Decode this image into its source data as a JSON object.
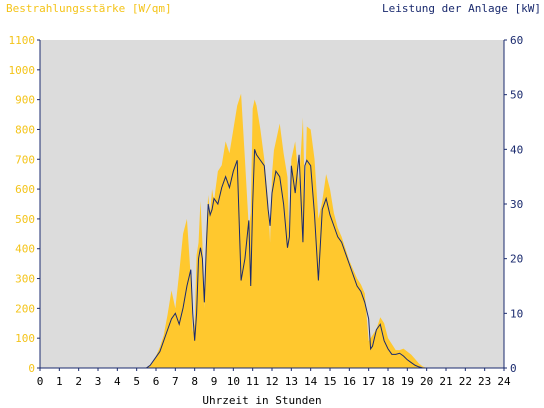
{
  "chart_data": {
    "type": "area",
    "title_left": "Bestrahlungsstärke [W/qm]",
    "title_right": "Leistung der Anlage [kW]",
    "xlabel": "Uhrzeit in Stunden",
    "x_range": [
      0,
      24
    ],
    "x_ticks": [
      "0",
      "1",
      "2",
      "3",
      "4",
      "5",
      "6",
      "7",
      "8",
      "9",
      "10",
      "11",
      "12",
      "13",
      "14",
      "15",
      "16",
      "17",
      "18",
      "19",
      "20",
      "21",
      "22",
      "23",
      "24"
    ],
    "y_left_range": [
      0,
      1100
    ],
    "y_left_ticks": [
      "0",
      "100",
      "200",
      "300",
      "400",
      "500",
      "600",
      "700",
      "800",
      "900",
      "1000",
      "1100"
    ],
    "y_right_range": [
      0,
      60
    ],
    "y_right_ticks": [
      "0",
      "10",
      "20",
      "30",
      "40",
      "50",
      "60"
    ],
    "grid": false,
    "colors": {
      "plot_background": "#dcdcdc",
      "irradiance_fill": "#ffc82e",
      "power_line": "#1a2a6e",
      "left_axis_text": "#f4c41a",
      "right_axis_text": "#1a2a6e"
    },
    "series": [
      {
        "axis": "left",
        "style": "filled-area",
        "x": [
          0,
          5.4,
          5.6,
          5.8,
          6.0,
          6.2,
          6.4,
          6.6,
          6.8,
          7.0,
          7.2,
          7.4,
          7.6,
          7.8,
          7.9,
          8.0,
          8.1,
          8.2,
          8.3,
          8.4,
          8.5,
          8.6,
          8.7,
          8.8,
          8.9,
          9.0,
          9.2,
          9.4,
          9.6,
          9.8,
          10.0,
          10.2,
          10.4,
          10.6,
          10.8,
          10.9,
          11.0,
          11.1,
          11.2,
          11.4,
          11.6,
          11.8,
          11.9,
          12.0,
          12.1,
          12.2,
          12.4,
          12.6,
          12.8,
          12.9,
          13.0,
          13.2,
          13.4,
          13.6,
          13.7,
          13.8,
          14.0,
          14.2,
          14.4,
          14.6,
          14.8,
          15.0,
          15.2,
          15.4,
          15.6,
          15.8,
          16.0,
          16.2,
          16.4,
          16.6,
          16.8,
          17.0,
          17.2,
          17.4,
          17.6,
          17.8,
          18.0,
          18.2,
          18.4,
          18.6,
          18.8,
          19.0,
          19.2,
          19.4,
          19.6,
          19.8,
          20.0,
          24
        ],
        "y": [
          0,
          0,
          5,
          15,
          40,
          70,
          110,
          180,
          260,
          200,
          320,
          450,
          500,
          300,
          120,
          150,
          380,
          420,
          560,
          420,
          200,
          450,
          580,
          520,
          600,
          560,
          660,
          680,
          760,
          720,
          800,
          880,
          920,
          700,
          470,
          520,
          870,
          900,
          880,
          800,
          700,
          560,
          420,
          650,
          730,
          760,
          820,
          720,
          640,
          430,
          700,
          760,
          620,
          840,
          560,
          810,
          800,
          700,
          500,
          560,
          650,
          600,
          520,
          470,
          440,
          400,
          360,
          330,
          300,
          280,
          250,
          90,
          110,
          130,
          170,
          150,
          100,
          80,
          60,
          60,
          65,
          55,
          45,
          30,
          15,
          5,
          0,
          0
        ]
      },
      {
        "axis": "right",
        "style": "line",
        "x": [
          0,
          5.5,
          5.7,
          6.0,
          6.2,
          6.4,
          6.6,
          6.8,
          7.0,
          7.2,
          7.4,
          7.6,
          7.8,
          7.9,
          8.0,
          8.1,
          8.2,
          8.3,
          8.4,
          8.5,
          8.6,
          8.7,
          8.8,
          8.9,
          9.0,
          9.2,
          9.4,
          9.6,
          9.8,
          10.0,
          10.2,
          10.4,
          10.6,
          10.8,
          10.9,
          11.0,
          11.1,
          11.2,
          11.4,
          11.6,
          11.8,
          11.9,
          12.0,
          12.1,
          12.2,
          12.4,
          12.6,
          12.8,
          12.9,
          13.0,
          13.2,
          13.4,
          13.6,
          13.7,
          13.8,
          14.0,
          14.2,
          14.4,
          14.6,
          14.8,
          15.0,
          15.2,
          15.4,
          15.6,
          15.8,
          16.0,
          16.2,
          16.4,
          16.6,
          16.8,
          17.0,
          17.1,
          17.2,
          17.4,
          17.6,
          17.8,
          18.0,
          18.2,
          18.4,
          18.6,
          18.8,
          19.0,
          19.2,
          19.4,
          19.6,
          19.8,
          24
        ],
        "y": [
          0,
          0,
          0.5,
          2,
          3,
          5,
          7,
          9,
          10,
          8,
          11,
          15,
          18,
          10,
          5,
          10,
          20,
          22,
          20,
          12,
          22,
          30,
          28,
          29,
          31,
          30,
          33,
          35,
          33,
          36,
          38,
          16,
          20,
          27,
          15,
          30,
          40,
          39,
          38,
          37,
          29,
          26,
          32,
          34,
          36,
          35,
          30,
          22,
          24,
          37,
          32,
          39,
          23,
          37,
          38,
          37,
          28,
          16,
          29,
          31,
          28,
          26,
          24,
          23,
          21,
          19,
          17,
          15,
          14,
          12,
          9,
          3.5,
          4,
          7,
          8,
          5,
          3.5,
          2.5,
          2.5,
          2.7,
          2.2,
          1.5,
          1,
          0.5,
          0.2,
          0,
          0
        ]
      }
    ]
  }
}
